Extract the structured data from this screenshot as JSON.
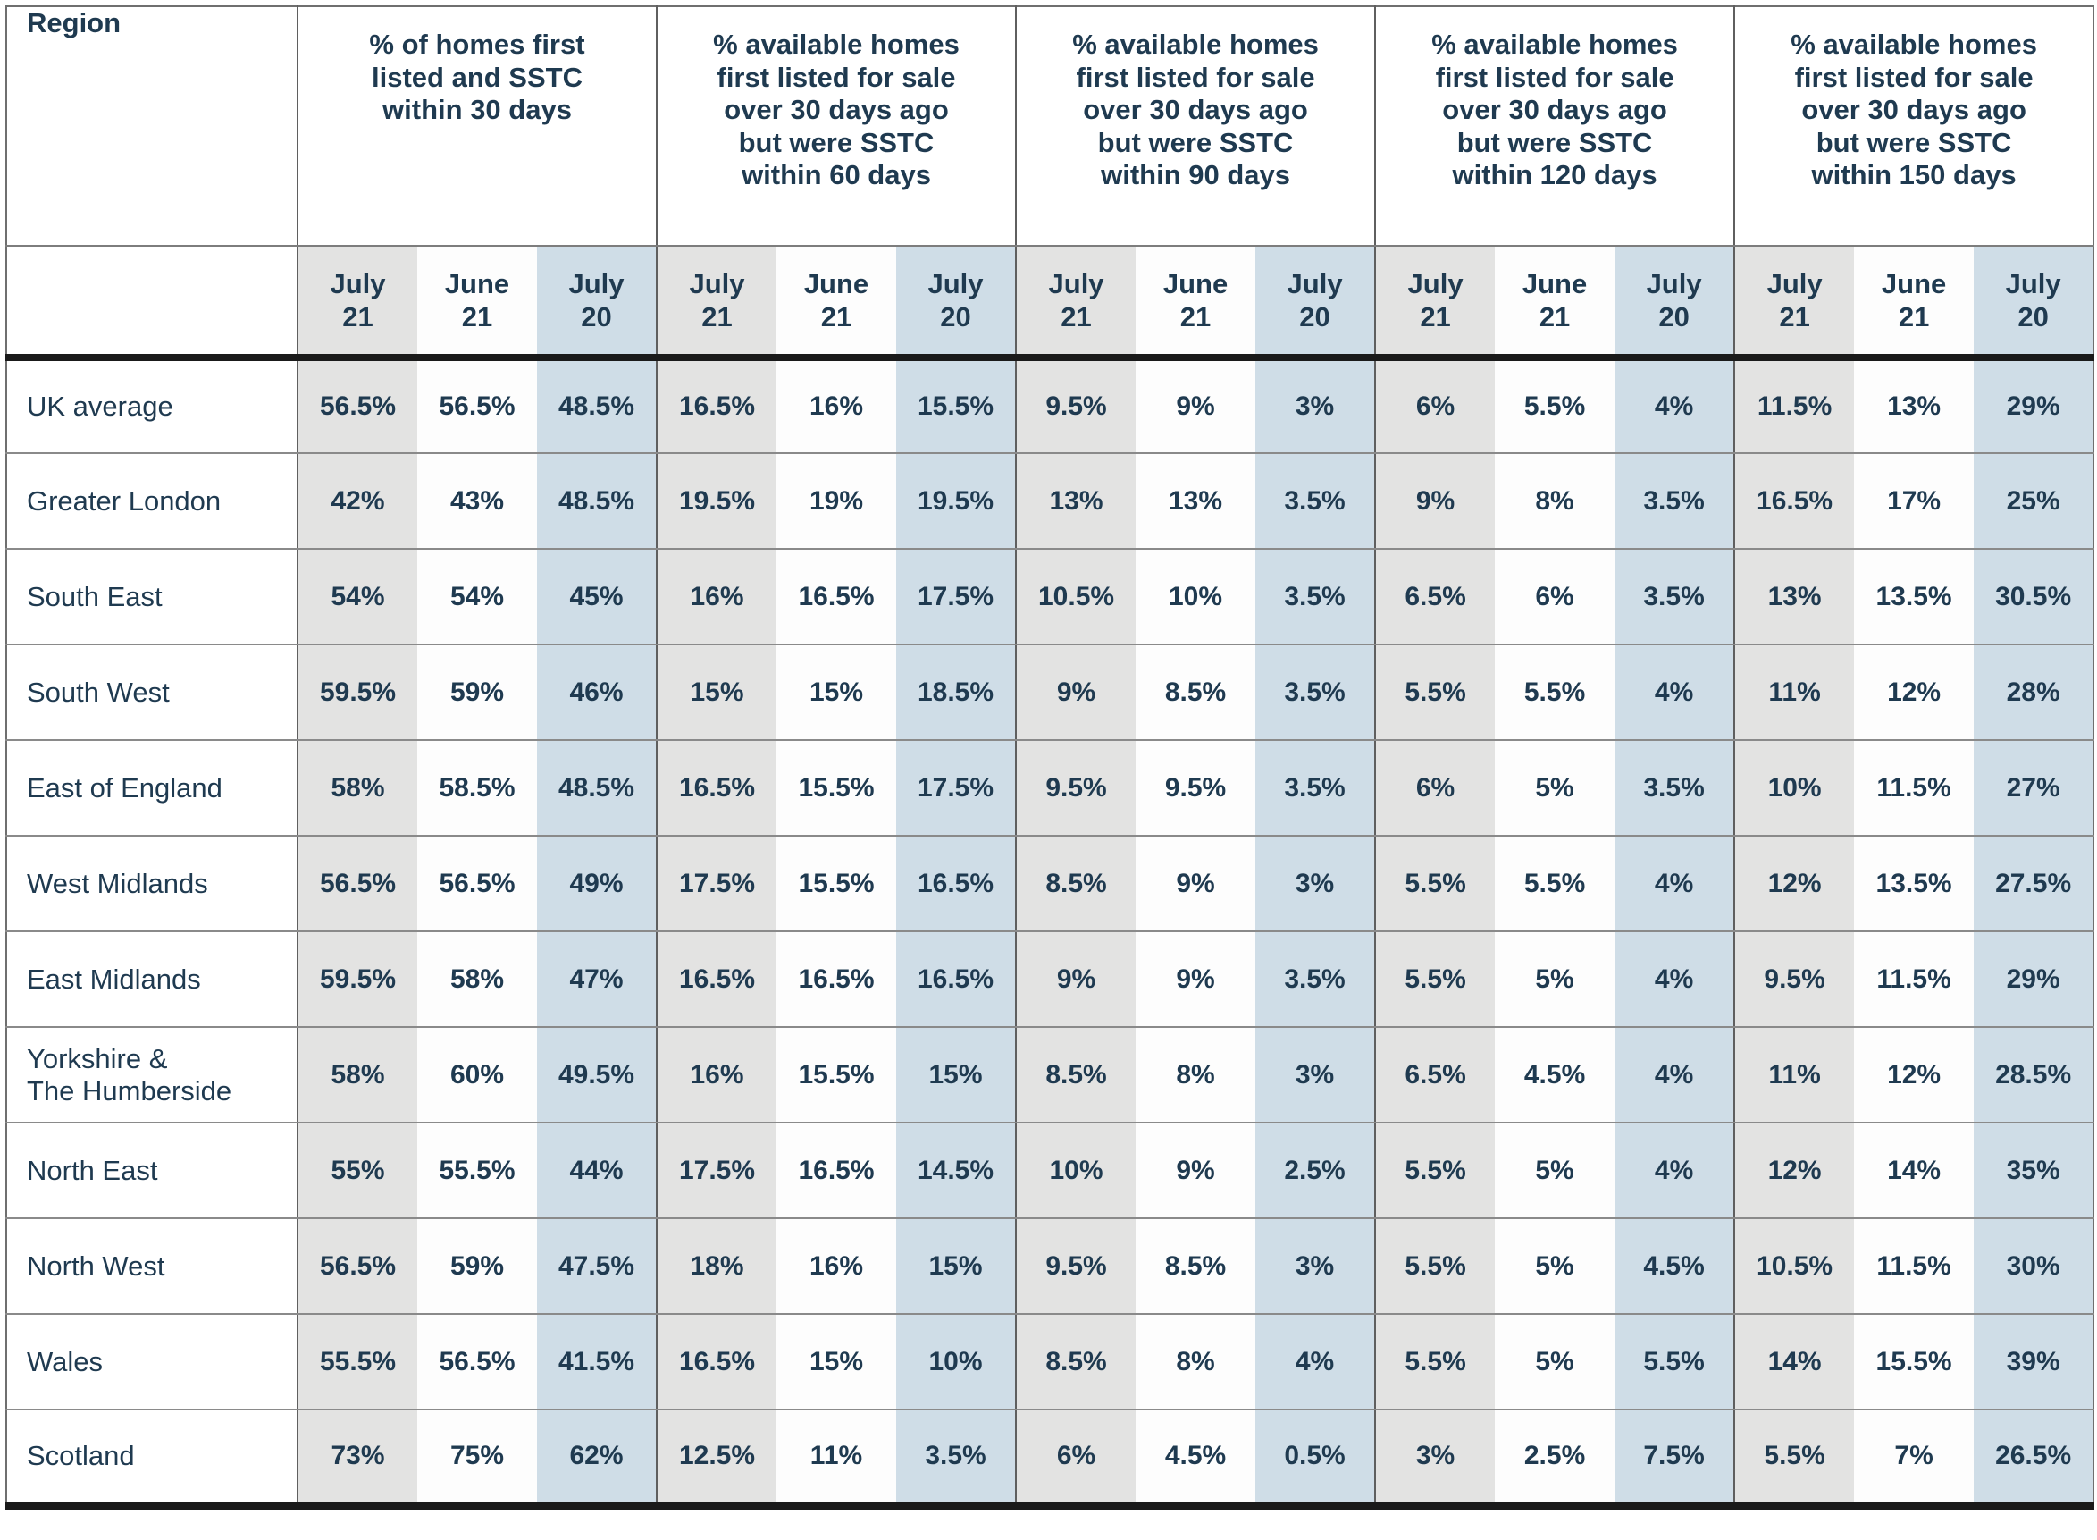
{
  "chart_data": {
    "type": "table",
    "region_column_header": "Region",
    "group_headers": [
      "% of homes first\nlisted and SSTC\nwithin 30 days",
      "% available homes\nfirst listed for sale\nover 30 days ago\nbut were SSTC\nwithin 60 days",
      "% available homes\nfirst listed for sale\nover 30 days ago\nbut were SSTC\nwithin 90 days",
      "% available homes\nfirst listed for sale\nover 30 days ago\nbut were SSTC\nwithin 120 days",
      "% available homes\nfirst listed for sale\nover 30 days ago\nbut were SSTC\nwithin 150 days"
    ],
    "period_columns": [
      "July\n21",
      "June\n21",
      "July\n20"
    ],
    "rows": [
      {
        "region": "UK average",
        "values": [
          "56.5%",
          "56.5%",
          "48.5%",
          "16.5%",
          "16%",
          "15.5%",
          "9.5%",
          "9%",
          "3%",
          "6%",
          "5.5%",
          "4%",
          "11.5%",
          "13%",
          "29%"
        ]
      },
      {
        "region": "Greater London",
        "values": [
          "42%",
          "43%",
          "48.5%",
          "19.5%",
          "19%",
          "19.5%",
          "13%",
          "13%",
          "3.5%",
          "9%",
          "8%",
          "3.5%",
          "16.5%",
          "17%",
          "25%"
        ]
      },
      {
        "region": "South East",
        "values": [
          "54%",
          "54%",
          "45%",
          "16%",
          "16.5%",
          "17.5%",
          "10.5%",
          "10%",
          "3.5%",
          "6.5%",
          "6%",
          "3.5%",
          "13%",
          "13.5%",
          "30.5%"
        ]
      },
      {
        "region": "South West",
        "values": [
          "59.5%",
          "59%",
          "46%",
          "15%",
          "15%",
          "18.5%",
          "9%",
          "8.5%",
          "3.5%",
          "5.5%",
          "5.5%",
          "4%",
          "11%",
          "12%",
          "28%"
        ]
      },
      {
        "region": "East of England",
        "values": [
          "58%",
          "58.5%",
          "48.5%",
          "16.5%",
          "15.5%",
          "17.5%",
          "9.5%",
          "9.5%",
          "3.5%",
          "6%",
          "5%",
          "3.5%",
          "10%",
          "11.5%",
          "27%"
        ]
      },
      {
        "region": "West Midlands",
        "values": [
          "56.5%",
          "56.5%",
          "49%",
          "17.5%",
          "15.5%",
          "16.5%",
          "8.5%",
          "9%",
          "3%",
          "5.5%",
          "5.5%",
          "4%",
          "12%",
          "13.5%",
          "27.5%"
        ]
      },
      {
        "region": "East Midlands",
        "values": [
          "59.5%",
          "58%",
          "47%",
          "16.5%",
          "16.5%",
          "16.5%",
          "9%",
          "9%",
          "3.5%",
          "5.5%",
          "5%",
          "4%",
          "9.5%",
          "11.5%",
          "29%"
        ]
      },
      {
        "region": "Yorkshire &\nThe Humberside",
        "values": [
          "58%",
          "60%",
          "49.5%",
          "16%",
          "15.5%",
          "15%",
          "8.5%",
          "8%",
          "3%",
          "6.5%",
          "4.5%",
          "4%",
          "11%",
          "12%",
          "28.5%"
        ]
      },
      {
        "region": "North East",
        "values": [
          "55%",
          "55.5%",
          "44%",
          "17.5%",
          "16.5%",
          "14.5%",
          "10%",
          "9%",
          "2.5%",
          "5.5%",
          "5%",
          "4%",
          "12%",
          "14%",
          "35%"
        ]
      },
      {
        "region": "North West",
        "values": [
          "56.5%",
          "59%",
          "47.5%",
          "18%",
          "16%",
          "15%",
          "9.5%",
          "8.5%",
          "3%",
          "5.5%",
          "5%",
          "4.5%",
          "10.5%",
          "11.5%",
          "30%"
        ]
      },
      {
        "region": "Wales",
        "values": [
          "55.5%",
          "56.5%",
          "41.5%",
          "16.5%",
          "15%",
          "10%",
          "8.5%",
          "8%",
          "4%",
          "5.5%",
          "5%",
          "5.5%",
          "14%",
          "15.5%",
          "39%"
        ]
      },
      {
        "region": "Scotland",
        "values": [
          "73%",
          "75%",
          "62%",
          "12.5%",
          "11%",
          "3.5%",
          "6%",
          "4.5%",
          "0.5%",
          "3%",
          "2.5%",
          "7.5%",
          "5.5%",
          "7%",
          "26.5%"
        ]
      }
    ]
  },
  "colors": {
    "text": "#1f3a50",
    "col_july21_bg": "#e3e3e2",
    "col_june21_bg": "#fdfdfd",
    "col_july20_bg": "#cfdde7",
    "thick_rule": "#1a1a1a"
  }
}
